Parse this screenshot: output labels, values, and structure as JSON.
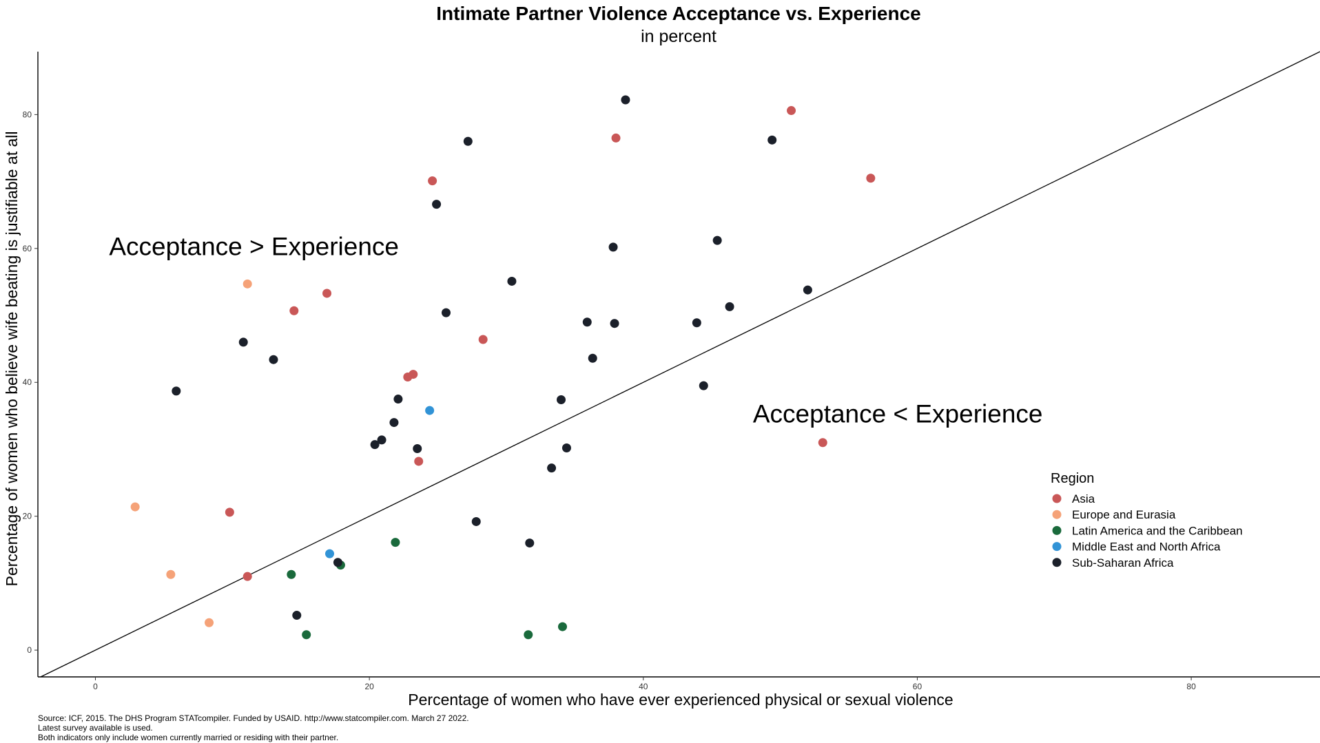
{
  "chart_data": {
    "type": "scatter",
    "title": "Intimate Partner Violence Acceptance vs. Experience",
    "subtitle": "in percent",
    "xlabel": "Percentage of women who have ever experienced physical or sexual violence",
    "ylabel": "Percentage of women who believe wife beating is justifiable at all",
    "xlim": [
      -4.2,
      89.4
    ],
    "ylim": [
      -4.0,
      89.4
    ],
    "x_ticks": [
      "0",
      "20",
      "40",
      "60",
      "80"
    ],
    "x_tick_values": [
      0,
      20,
      40,
      60,
      80
    ],
    "y_ticks": [
      "0",
      "20",
      "40",
      "60",
      "80"
    ],
    "y_tick_values": [
      0,
      20,
      40,
      60,
      80
    ],
    "grid": false,
    "reference_line": "y = x",
    "annotations": [
      {
        "text": "Acceptance > Experience",
        "x": 1,
        "y": 59
      },
      {
        "text": "Acceptance < Experience",
        "x": 48,
        "y": 34
      }
    ],
    "legend": {
      "title": "Region",
      "placement": "right",
      "entries": [
        {
          "name": "Asia",
          "color": "#c95757"
        },
        {
          "name": "Europe and Eurasia",
          "color": "#f5a278"
        },
        {
          "name": "Latin America and the Caribbean",
          "color": "#1a6a3c"
        },
        {
          "name": "Middle East and North Africa",
          "color": "#3193d6"
        },
        {
          "name": "Sub-Saharan Africa",
          "color": "#1b202a"
        }
      ]
    },
    "series": [
      {
        "name": "Asia",
        "color": "#c95757",
        "points": [
          [
            50.8,
            80.6
          ],
          [
            38.0,
            76.5
          ],
          [
            56.6,
            70.5
          ],
          [
            24.6,
            70.1
          ],
          [
            16.9,
            53.3
          ],
          [
            14.5,
            50.7
          ],
          [
            28.3,
            46.4
          ],
          [
            23.2,
            41.2
          ],
          [
            22.8,
            40.8
          ],
          [
            23.6,
            28.2
          ],
          [
            9.8,
            20.6
          ],
          [
            11.1,
            11.0
          ],
          [
            53.1,
            31.0
          ]
        ]
      },
      {
        "name": "Europe and Eurasia",
        "color": "#f5a278",
        "points": [
          [
            11.1,
            54.7
          ],
          [
            2.9,
            21.4
          ],
          [
            5.5,
            11.3
          ],
          [
            8.3,
            4.1
          ]
        ]
      },
      {
        "name": "Latin America and the Caribbean",
        "color": "#1a6a3c",
        "points": [
          [
            21.9,
            16.1
          ],
          [
            14.3,
            11.3
          ],
          [
            17.9,
            12.7
          ],
          [
            15.4,
            2.3
          ],
          [
            31.6,
            2.3
          ],
          [
            34.1,
            3.5
          ]
        ]
      },
      {
        "name": "Middle East and North Africa",
        "color": "#3193d6",
        "points": [
          [
            24.4,
            35.8
          ],
          [
            17.1,
            14.4
          ]
        ]
      },
      {
        "name": "Sub-Saharan Africa",
        "color": "#1b202a",
        "points": [
          [
            38.7,
            82.2
          ],
          [
            27.2,
            76.0
          ],
          [
            49.4,
            76.2
          ],
          [
            24.9,
            66.6
          ],
          [
            37.8,
            60.2
          ],
          [
            45.4,
            61.2
          ],
          [
            30.4,
            55.1
          ],
          [
            52.0,
            53.8
          ],
          [
            46.3,
            51.3
          ],
          [
            25.6,
            50.4
          ],
          [
            35.9,
            49.0
          ],
          [
            37.9,
            48.8
          ],
          [
            43.9,
            48.9
          ],
          [
            10.8,
            46.0
          ],
          [
            13.0,
            43.4
          ],
          [
            36.3,
            43.6
          ],
          [
            5.9,
            38.7
          ],
          [
            44.4,
            39.5
          ],
          [
            22.1,
            37.5
          ],
          [
            34.0,
            37.4
          ],
          [
            21.8,
            34.0
          ],
          [
            20.9,
            31.4
          ],
          [
            20.4,
            30.7
          ],
          [
            23.5,
            30.1
          ],
          [
            34.4,
            30.2
          ],
          [
            33.3,
            27.2
          ],
          [
            27.8,
            19.2
          ],
          [
            31.7,
            16.0
          ],
          [
            17.7,
            13.1
          ],
          [
            14.7,
            5.2
          ]
        ]
      }
    ]
  },
  "caption": {
    "line1": "Source: ICF, 2015. The DHS Program STATcompiler. Funded by USAID. http://www.statcompiler.com. March 27 2022.",
    "line2": "Latest survey available is used.",
    "line3": "Both indicators only include women currently married or residing with their partner."
  }
}
